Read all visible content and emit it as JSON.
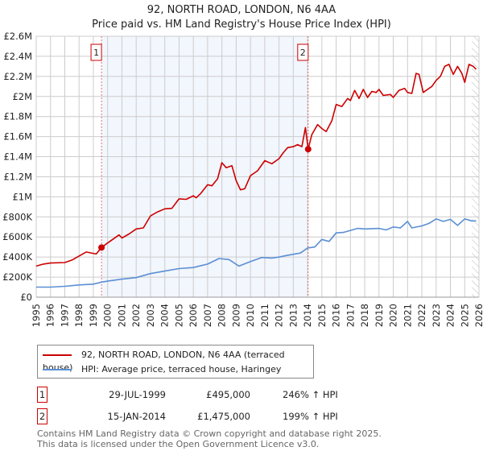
{
  "chart_data": {
    "type": "line",
    "title": "92, NORTH ROAD, LONDON, N6 4AA",
    "subtitle": "Price paid vs. HM Land Registry's House Price Index (HPI)",
    "xlim": [
      1995,
      2026
    ],
    "ylim": [
      0,
      2600000
    ],
    "x_ticks": [
      "1995",
      "1996",
      "1997",
      "1998",
      "1999",
      "2000",
      "2001",
      "2002",
      "2003",
      "2004",
      "2005",
      "2006",
      "2007",
      "2008",
      "2009",
      "2010",
      "2011",
      "2012",
      "2013",
      "2014",
      "2015",
      "2016",
      "2017",
      "2018",
      "2019",
      "2020",
      "2021",
      "2022",
      "2023",
      "2024",
      "2025",
      "2026"
    ],
    "y_ticks": [
      {
        "v": 0,
        "label": "£0"
      },
      {
        "v": 200000,
        "label": "£200K"
      },
      {
        "v": 400000,
        "label": "£400K"
      },
      {
        "v": 600000,
        "label": "£600K"
      },
      {
        "v": 800000,
        "label": "£800K"
      },
      {
        "v": 1000000,
        "label": "£1M"
      },
      {
        "v": 1200000,
        "label": "£1.2M"
      },
      {
        "v": 1400000,
        "label": "£1.4M"
      },
      {
        "v": 1600000,
        "label": "£1.6M"
      },
      {
        "v": 1800000,
        "label": "£1.8M"
      },
      {
        "v": 2000000,
        "label": "£2M"
      },
      {
        "v": 2200000,
        "label": "£2.2M"
      },
      {
        "v": 2400000,
        "label": "£2.4M"
      },
      {
        "v": 2600000,
        "label": "£2.6M"
      }
    ],
    "grid": true,
    "shaded_range": [
      1999.57,
      2014.04
    ],
    "hatched_from": 2025.5,
    "series": [
      {
        "name": "92, NORTH ROAD, LONDON, N6 4AA (terraced house)",
        "color": "#cc0000",
        "points": [
          [
            1995,
            310
          ],
          [
            1995.5,
            330
          ],
          [
            1996,
            340
          ],
          [
            1997,
            345
          ],
          [
            1997.5,
            370
          ],
          [
            1998,
            410
          ],
          [
            1998.5,
            450
          ],
          [
            1999.2,
            430
          ],
          [
            1999.57,
            495
          ],
          [
            2000,
            540
          ],
          [
            2000.8,
            620
          ],
          [
            2001,
            590
          ],
          [
            2001.5,
            630
          ],
          [
            2002,
            680
          ],
          [
            2002.5,
            690
          ],
          [
            2003,
            810
          ],
          [
            2003.5,
            850
          ],
          [
            2004,
            880
          ],
          [
            2004.5,
            885
          ],
          [
            2005,
            980
          ],
          [
            2005.5,
            975
          ],
          [
            2006,
            1010
          ],
          [
            2006.2,
            990
          ],
          [
            2006.5,
            1030
          ],
          [
            2007,
            1120
          ],
          [
            2007.3,
            1110
          ],
          [
            2007.7,
            1180
          ],
          [
            2008,
            1340
          ],
          [
            2008.3,
            1290
          ],
          [
            2008.7,
            1310
          ],
          [
            2009,
            1160
          ],
          [
            2009.3,
            1070
          ],
          [
            2009.6,
            1080
          ],
          [
            2010,
            1210
          ],
          [
            2010.5,
            1260
          ],
          [
            2011,
            1360
          ],
          [
            2011.5,
            1330
          ],
          [
            2012,
            1380
          ],
          [
            2012.3,
            1440
          ],
          [
            2012.6,
            1490
          ],
          [
            2013,
            1500
          ],
          [
            2013.3,
            1520
          ],
          [
            2013.6,
            1500
          ],
          [
            2013.85,
            1690
          ],
          [
            2014.04,
            1475
          ],
          [
            2014.3,
            1620
          ],
          [
            2014.7,
            1720
          ],
          [
            2015,
            1680
          ],
          [
            2015.3,
            1650
          ],
          [
            2015.7,
            1760
          ],
          [
            2016,
            1920
          ],
          [
            2016.4,
            1900
          ],
          [
            2016.8,
            1980
          ],
          [
            2017,
            1960
          ],
          [
            2017.3,
            2060
          ],
          [
            2017.6,
            1980
          ],
          [
            2017.9,
            2070
          ],
          [
            2018.2,
            1990
          ],
          [
            2018.5,
            2050
          ],
          [
            2018.8,
            2040
          ],
          [
            2019,
            2070
          ],
          [
            2019.3,
            2010
          ],
          [
            2019.8,
            2020
          ],
          [
            2020,
            1990
          ],
          [
            2020.4,
            2060
          ],
          [
            2020.8,
            2080
          ],
          [
            2021,
            2040
          ],
          [
            2021.3,
            2030
          ],
          [
            2021.6,
            2230
          ],
          [
            2021.8,
            2220
          ],
          [
            2022.1,
            2040
          ],
          [
            2022.4,
            2070
          ],
          [
            2022.7,
            2100
          ],
          [
            2023,
            2160
          ],
          [
            2023.3,
            2200
          ],
          [
            2023.6,
            2300
          ],
          [
            2023.9,
            2320
          ],
          [
            2024.2,
            2220
          ],
          [
            2024.5,
            2300
          ],
          [
            2024.8,
            2230
          ],
          [
            2025,
            2140
          ],
          [
            2025.3,
            2320
          ],
          [
            2025.6,
            2300
          ],
          [
            2025.8,
            2270
          ]
        ]
      },
      {
        "name": "HPI: Average price, terraced house, Haringey",
        "color": "#5b8fd4",
        "points": [
          [
            1995,
            100
          ],
          [
            1996,
            100
          ],
          [
            1997,
            108
          ],
          [
            1998,
            122
          ],
          [
            1999,
            130
          ],
          [
            1999.57,
            150
          ],
          [
            2000,
            160
          ],
          [
            2001,
            180
          ],
          [
            2002,
            195
          ],
          [
            2003,
            235
          ],
          [
            2004,
            260
          ],
          [
            2005,
            285
          ],
          [
            2006,
            295
          ],
          [
            2007,
            330
          ],
          [
            2007.8,
            385
          ],
          [
            2008.5,
            375
          ],
          [
            2009.2,
            310
          ],
          [
            2010,
            355
          ],
          [
            2010.8,
            395
          ],
          [
            2011.5,
            390
          ],
          [
            2012,
            400
          ],
          [
            2012.5,
            415
          ],
          [
            2013.5,
            440
          ],
          [
            2014,
            490
          ],
          [
            2014.5,
            500
          ],
          [
            2015,
            575
          ],
          [
            2015.5,
            555
          ],
          [
            2016,
            640
          ],
          [
            2016.5,
            645
          ],
          [
            2017,
            665
          ],
          [
            2017.5,
            685
          ],
          [
            2018,
            680
          ],
          [
            2019,
            685
          ],
          [
            2019.5,
            670
          ],
          [
            2020,
            700
          ],
          [
            2020.5,
            690
          ],
          [
            2021,
            755
          ],
          [
            2021.3,
            690
          ],
          [
            2022,
            710
          ],
          [
            2022.5,
            735
          ],
          [
            2023,
            780
          ],
          [
            2023.5,
            755
          ],
          [
            2024,
            775
          ],
          [
            2024.5,
            715
          ],
          [
            2025,
            780
          ],
          [
            2025.5,
            760
          ],
          [
            2025.8,
            760
          ]
        ]
      }
    ],
    "units_note": "series values in £ thousands",
    "annotations": [
      {
        "label": "1",
        "x": 1999.57,
        "y": 495
      },
      {
        "label": "2",
        "x": 2014.04,
        "y": 1475
      }
    ]
  },
  "legend": {
    "items": [
      {
        "label": "92, NORTH ROAD, LONDON, N6 4AA (terraced house)",
        "color": "#cc0000"
      },
      {
        "label": "HPI: Average price, terraced house, Haringey",
        "color": "#5b8fd4"
      }
    ]
  },
  "sales": [
    {
      "num": "1",
      "date": "29-JUL-1999",
      "price": "£495,000",
      "hpi": "246% ↑ HPI"
    },
    {
      "num": "2",
      "date": "15-JAN-2014",
      "price": "£1,475,000",
      "hpi": "199% ↑ HPI"
    }
  ],
  "footer": {
    "line1": "Contains HM Land Registry data © Crown copyright and database right 2025.",
    "line2": "This data is licensed under the Open Government Licence v3.0."
  }
}
